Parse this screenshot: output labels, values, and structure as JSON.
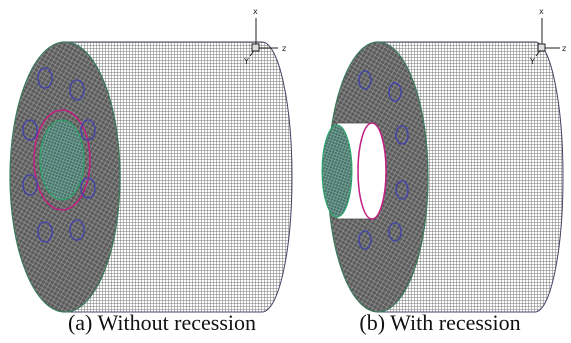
{
  "panels": [
    {
      "caption": "(a) Without recession",
      "axes": {
        "x": "x",
        "z": "z",
        "y": "Y"
      }
    },
    {
      "caption": "(b) With recession",
      "axes": {
        "x": "x",
        "z": "z",
        "y": "Y"
      }
    }
  ]
}
